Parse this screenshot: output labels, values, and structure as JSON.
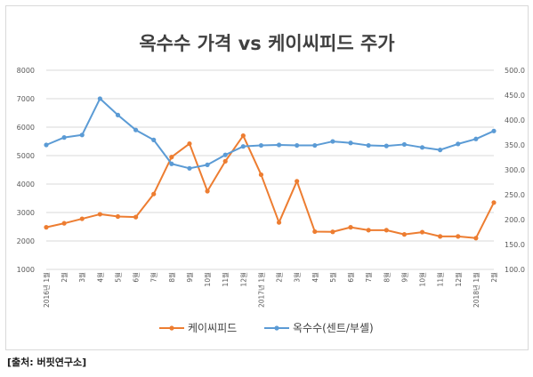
{
  "chart_data": {
    "type": "line",
    "title": "옥수수 가격 vs 케이씨피드 주가",
    "categories": [
      "2016년 1월",
      "2월",
      "3월",
      "4월",
      "5월",
      "6월",
      "7월",
      "8월",
      "9월",
      "10월",
      "11월",
      "12월",
      "2017년 1월",
      "2월",
      "3월",
      "4월",
      "5월",
      "6월",
      "7월",
      "8월",
      "9월",
      "10월",
      "11월",
      "12월",
      "2018년 1월",
      "2월"
    ],
    "left_axis": {
      "min": 1000,
      "max": 8000,
      "step": 1000,
      "ticks": [
        "1000",
        "2000",
        "3000",
        "4000",
        "5000",
        "6000",
        "7000",
        "8000"
      ]
    },
    "right_axis": {
      "min": 100,
      "max": 500,
      "step": 50,
      "ticks": [
        "100.0",
        "150.0",
        "200.0",
        "250.0",
        "300.0",
        "350.0",
        "400.0",
        "450.0",
        "500.0"
      ]
    },
    "series": [
      {
        "name": "케이씨피드",
        "axis": "left",
        "color": "#ED7D31",
        "values": [
          2480,
          2620,
          2780,
          2940,
          2860,
          2840,
          3650,
          4950,
          5420,
          3750,
          4800,
          5700,
          4330,
          2650,
          4100,
          2330,
          2320,
          2480,
          2380,
          2380,
          2230,
          2310,
          2160,
          2160,
          2100,
          3350
        ]
      },
      {
        "name": "옥수수(센트/부셸)",
        "axis": "right",
        "color": "#5B9BD5",
        "values": [
          350,
          365,
          370,
          443,
          410,
          380,
          360,
          312,
          303,
          310,
          330,
          347,
          349,
          350,
          349,
          349,
          357,
          354,
          349,
          348,
          351,
          345,
          340,
          352,
          362,
          378
        ]
      }
    ],
    "grid": "horizontal",
    "legend_position": "bottom"
  },
  "source_note": "[출처: 버핏연구소]"
}
